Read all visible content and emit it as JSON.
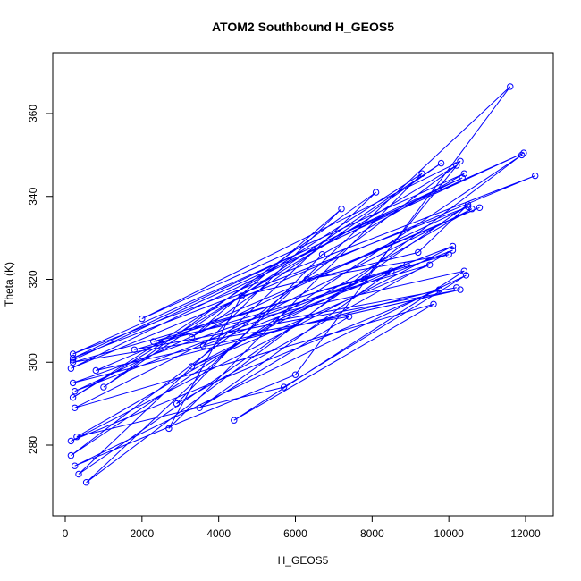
{
  "chart_data": {
    "type": "scatter",
    "title": "ATOM2 Southbound H_GEOS5",
    "xlabel": "H_GEOS5",
    "ylabel": "Theta (K)",
    "xlim": [
      0,
      12500
    ],
    "ylim": [
      268,
      370
    ],
    "x_ticks": [
      0,
      2000,
      4000,
      6000,
      8000,
      10000,
      12000
    ],
    "y_ticks": [
      280,
      300,
      320,
      340,
      360
    ],
    "grid": false,
    "legend": "none",
    "colors": {
      "series": "#0000ff",
      "axis": "#000000",
      "background": "#ffffff"
    },
    "series": [
      {
        "marker": "open-circle",
        "line": true,
        "x": [
          200,
          11950,
          200,
          12250,
          150,
          10350,
          200,
          10500,
          250,
          10100,
          150,
          9750,
          200,
          8900,
          2300,
          10400,
          4400,
          9600,
          250,
          10600,
          300,
          5700,
          10450,
          250,
          6000,
          11600,
          550,
          11900,
          150,
          10200,
          200,
          9300,
          2700,
          4600,
          9200,
          10500,
          350,
          8100,
          1000,
          9800,
          3300,
          7200,
          3600,
          10100,
          2900,
          6700,
          10400,
          2000,
          10300,
          7800,
          3300,
          9500,
          1800,
          10300,
          800,
          10800,
          6300,
          10000,
          200,
          7400,
          3500,
          8500,
          5500,
          10200
        ],
        "y": [
          300.5,
          350.5,
          302,
          345,
          298.5,
          344.5,
          301,
          337.5,
          293,
          328,
          281,
          317.5,
          295,
          323.5,
          305,
          322,
          286,
          314,
          289,
          337,
          282,
          294,
          321,
          275,
          297,
          366.5,
          271,
          350,
          277.5,
          347.5,
          291.5,
          345.5,
          284,
          316,
          326.5,
          338,
          273,
          341,
          294,
          348,
          306,
          337,
          304,
          327,
          290,
          326,
          345.5,
          310.5,
          348.5,
          320,
          299,
          323.5,
          303,
          317.5,
          298,
          337.3,
          320,
          326,
          300,
          311,
          289,
          322,
          310,
          318
        ]
      }
    ]
  }
}
